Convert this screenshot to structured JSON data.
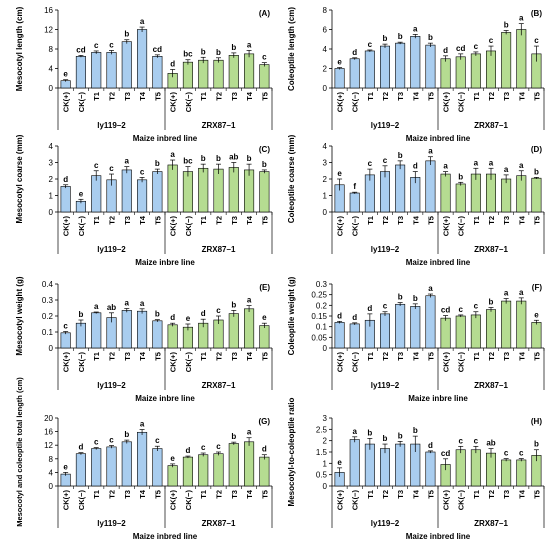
{
  "colors": {
    "ly": "#a9cdef",
    "zrx": "#b5dc91",
    "stroke": "#000000"
  },
  "chart_data": [
    {
      "type": "bar",
      "panel": "(A)",
      "ylabel": "Mesocotyl length (cm)",
      "xlabel": "Maize inbred line",
      "ylim": [
        0,
        16
      ],
      "yticks": [
        0,
        4,
        8,
        12,
        16
      ],
      "yticklabels": [
        "0",
        "4",
        "8",
        "12",
        "16"
      ],
      "categories": [
        "CK(+)",
        "CK(−)",
        "T1",
        "T2",
        "T3",
        "T4",
        "T5",
        "CK(+)",
        "CK(−)",
        "T1",
        "T2",
        "T3",
        "T4",
        "T5"
      ],
      "groups": [
        {
          "name": "ly119–2",
          "count": 7
        },
        {
          "name": "ZRX87–1",
          "count": 7
        }
      ],
      "values": [
        1.5,
        6.5,
        7.3,
        7.3,
        9.5,
        12.0,
        6.5,
        3.0,
        5.3,
        5.7,
        5.7,
        6.7,
        7.0,
        4.8
      ],
      "errors": [
        0.2,
        0.2,
        0.3,
        0.4,
        0.4,
        0.5,
        0.3,
        0.8,
        0.5,
        0.6,
        0.5,
        0.5,
        0.7,
        0.4
      ],
      "letters": [
        "e",
        "cd",
        "c",
        "c",
        "b",
        "a",
        "cd",
        "d",
        "bc",
        "b",
        "b",
        "b",
        "a",
        "c"
      ]
    },
    {
      "type": "bar",
      "panel": "(B)",
      "ylabel": "Coleoptile length (cm)",
      "xlabel": "Maize inbred line",
      "ylim": [
        0,
        8
      ],
      "yticks": [
        0,
        2,
        4,
        6,
        8
      ],
      "yticklabels": [
        "0",
        "2",
        "4",
        "6",
        "8"
      ],
      "categories": [
        "CK(+)",
        "CK(−)",
        "T1",
        "T2",
        "T3",
        "T4",
        "T5",
        "CK(+)",
        "CK(−)",
        "T1",
        "T2",
        "T3",
        "T4",
        "T5"
      ],
      "groups": [
        {
          "name": "ly119–2",
          "count": 7
        },
        {
          "name": "ZRX87–1",
          "count": 7
        }
      ],
      "values": [
        2.0,
        3.0,
        3.8,
        4.3,
        4.6,
        5.3,
        4.4,
        3.0,
        3.2,
        3.5,
        3.8,
        5.7,
        6.0,
        3.5
      ],
      "errors": [
        0.1,
        0.1,
        0.1,
        0.2,
        0.1,
        0.2,
        0.2,
        0.3,
        0.3,
        0.2,
        0.5,
        0.2,
        0.6,
        0.8
      ],
      "letters": [
        "e",
        "d",
        "c",
        "b",
        "b",
        "a",
        "b",
        "d",
        "cd",
        "c",
        "c",
        "b",
        "a",
        "c"
      ]
    },
    {
      "type": "bar",
      "panel": "(C)",
      "ylabel": "Mesocotyl coarse (mm)",
      "xlabel": "Maize inbre line",
      "ylim": [
        0,
        4
      ],
      "yticks": [
        0,
        1,
        2,
        3,
        4
      ],
      "yticklabels": [
        "0",
        "1",
        "2",
        "3",
        "4"
      ],
      "categories": [
        "CK(+)",
        "CK(−)",
        "T1",
        "T2",
        "T3",
        "T4",
        "T5",
        "CK(+)",
        "CK(−)",
        "T1",
        "T2",
        "T3",
        "T4",
        "T5"
      ],
      "groups": [
        {
          "name": "ly119–2",
          "count": 7
        },
        {
          "name": "ZRX87–1",
          "count": 7
        }
      ],
      "values": [
        1.55,
        0.65,
        2.2,
        1.95,
        2.55,
        1.95,
        2.45,
        2.85,
        2.45,
        2.65,
        2.6,
        2.7,
        2.55,
        2.45
      ],
      "errors": [
        0.1,
        0.12,
        0.3,
        0.35,
        0.2,
        0.15,
        0.15,
        0.3,
        0.3,
        0.25,
        0.3,
        0.3,
        0.35,
        0.1
      ],
      "letters": [
        "d",
        "e",
        "c",
        "c",
        "a",
        "c",
        "b",
        "a",
        "bc",
        "b",
        "b",
        "ab",
        "b",
        "b"
      ]
    },
    {
      "type": "bar",
      "panel": "(D)",
      "ylabel": "Coleoptile coarse (mm)",
      "xlabel": "Maize inbred line",
      "ylim": [
        0,
        4
      ],
      "yticks": [
        0,
        1,
        2,
        3,
        4
      ],
      "yticklabels": [
        "0",
        "1",
        "2",
        "3",
        "4"
      ],
      "categories": [
        "CK(+)",
        "CK(−)",
        "T1",
        "T2",
        "T3",
        "T4",
        "T5",
        "CK(+)",
        "CK(−)",
        "T1",
        "T2",
        "T3",
        "T4",
        "T5"
      ],
      "groups": [
        {
          "name": "ly119–2",
          "count": 7
        },
        {
          "name": "ZRX87–1",
          "count": 7
        }
      ],
      "values": [
        1.65,
        1.15,
        2.25,
        2.45,
        2.85,
        2.1,
        3.1,
        2.3,
        1.7,
        2.3,
        2.3,
        2.0,
        2.2,
        2.05
      ],
      "errors": [
        0.35,
        0.05,
        0.35,
        0.35,
        0.25,
        0.35,
        0.25,
        0.15,
        0.1,
        0.35,
        0.35,
        0.25,
        0.3,
        0.05
      ],
      "letters": [
        "e",
        "f",
        "c",
        "c",
        "b",
        "d",
        "a",
        "a",
        "b",
        "a",
        "a",
        "a",
        "a",
        "b"
      ]
    },
    {
      "type": "bar",
      "panel": "(E)",
      "ylabel": "Mesocotyl weight (g)",
      "xlabel": "Maize inbre line",
      "ylim": [
        0,
        0.4
      ],
      "yticks": [
        0,
        0.1,
        0.2,
        0.3,
        0.4
      ],
      "yticklabels": [
        "0",
        "0.1",
        "0.2",
        "0.3",
        "0.4"
      ],
      "categories": [
        "CK(+)",
        "CK(−)",
        "T1",
        "T2",
        "T3",
        "T4",
        "T5",
        "CK(+)",
        "CK(−)",
        "T1",
        "T2",
        "T3",
        "T4",
        "T5"
      ],
      "groups": [
        {
          "name": "ly119–2",
          "count": 7
        },
        {
          "name": "ZRX87–1",
          "count": 7
        }
      ],
      "values": [
        0.095,
        0.155,
        0.22,
        0.19,
        0.235,
        0.23,
        0.17,
        0.145,
        0.13,
        0.155,
        0.175,
        0.215,
        0.245,
        0.14
      ],
      "errors": [
        0.008,
        0.02,
        0.005,
        0.03,
        0.012,
        0.015,
        0.007,
        0.01,
        0.02,
        0.025,
        0.025,
        0.02,
        0.02,
        0.015
      ],
      "letters": [
        "c",
        "b",
        "a",
        "ab",
        "a",
        "a",
        "b",
        "d",
        "e",
        "d",
        "c",
        "b",
        "a",
        "e"
      ]
    },
    {
      "type": "bar",
      "panel": "(F)",
      "ylabel": "Coleoptile weight (g)",
      "xlabel": "Maize inbre line",
      "ylim": [
        0,
        0.3
      ],
      "yticks": [
        0,
        0.05,
        0.1,
        0.15,
        0.2,
        0.25,
        0.3
      ],
      "yticklabels": [
        "0",
        "0.05",
        "0.1",
        "0.15",
        "0.2",
        "0.25",
        "0.3"
      ],
      "categories": [
        "CK(+)",
        "CK(−)",
        "T1",
        "T2",
        "T3",
        "T4",
        "T5",
        "CK(+)",
        "CK(−)",
        "T1",
        "T2",
        "T3",
        "T4",
        "T5"
      ],
      "groups": [
        {
          "name": "ly119–2",
          "count": 7
        },
        {
          "name": "ZRX87–1",
          "count": 7
        }
      ],
      "values": [
        0.12,
        0.113,
        0.13,
        0.16,
        0.205,
        0.195,
        0.245,
        0.14,
        0.15,
        0.155,
        0.18,
        0.22,
        0.22,
        0.12
      ],
      "errors": [
        0.005,
        0.005,
        0.03,
        0.01,
        0.008,
        0.012,
        0.008,
        0.012,
        0.005,
        0.015,
        0.01,
        0.012,
        0.015,
        0.01
      ],
      "letters": [
        "d",
        "d",
        "d",
        "c",
        "b",
        "b",
        "a",
        "cd",
        "c",
        "c",
        "b",
        "a",
        "a",
        "e"
      ]
    },
    {
      "type": "bar",
      "panel": "(G)",
      "ylabel": "Mesocotyl and coleoptile total length (cm)",
      "xlabel": "Maize inbred line",
      "ylim": [
        0,
        20
      ],
      "yticks": [
        0,
        4,
        8,
        12,
        16,
        20
      ],
      "yticklabels": [
        "0",
        "4",
        "8",
        "12",
        "16",
        "20"
      ],
      "categories": [
        "CK(+)",
        "CK(−)",
        "T1",
        "T2",
        "T3",
        "T4",
        "T5",
        "CK(+)",
        "CK(−)",
        "T1",
        "T2",
        "T3",
        "T4",
        "T5"
      ],
      "groups": [
        {
          "name": "ly119–2",
          "count": 7
        },
        {
          "name": "ZRX87–1",
          "count": 7
        }
      ],
      "values": [
        3.5,
        9.5,
        11.0,
        11.5,
        13.0,
        15.8,
        11.0,
        6.0,
        8.5,
        9.2,
        9.5,
        12.5,
        13.0,
        8.5
      ],
      "errors": [
        0.5,
        0.3,
        0.3,
        0.4,
        0.5,
        0.8,
        0.7,
        0.5,
        0.3,
        0.5,
        0.5,
        0.4,
        1.2,
        0.7
      ],
      "letters": [
        "e",
        "d",
        "c",
        "c",
        "b",
        "a",
        "c",
        "e",
        "d",
        "c",
        "c",
        "b",
        "a",
        "d"
      ]
    },
    {
      "type": "bar",
      "panel": "(H)",
      "ylabel": "Mesocotyl-to-coleoptile ratio",
      "xlabel": "Maize inbred line",
      "ylim": [
        0,
        3
      ],
      "yticks": [
        0,
        0.5,
        1,
        1.5,
        2,
        2.5,
        3
      ],
      "yticklabels": [
        "0",
        "0.5",
        "1",
        "1.5",
        "2",
        "2.5",
        "3"
      ],
      "categories": [
        "CK(+)",
        "CK(−)",
        "T1",
        "T2",
        "T3",
        "T4",
        "T5",
        "CK(+)",
        "CK(−)",
        "T1",
        "T2",
        "T3",
        "T4",
        "T5"
      ],
      "groups": [
        {
          "name": "ly119–2",
          "count": 7
        },
        {
          "name": "ZRX87–1",
          "count": 7
        }
      ],
      "values": [
        0.6,
        2.05,
        1.85,
        1.65,
        1.85,
        1.85,
        1.5,
        0.95,
        1.6,
        1.6,
        1.45,
        1.15,
        1.15,
        1.35
      ],
      "errors": [
        0.2,
        0.12,
        0.25,
        0.2,
        0.12,
        0.35,
        0.05,
        0.25,
        0.15,
        0.15,
        0.2,
        0.06,
        0.06,
        0.25
      ],
      "letters": [
        "e",
        "a",
        "b",
        "b",
        "b",
        "b",
        "d",
        "cd",
        "c",
        "c",
        "ab",
        "c",
        "c",
        "b"
      ]
    }
  ]
}
